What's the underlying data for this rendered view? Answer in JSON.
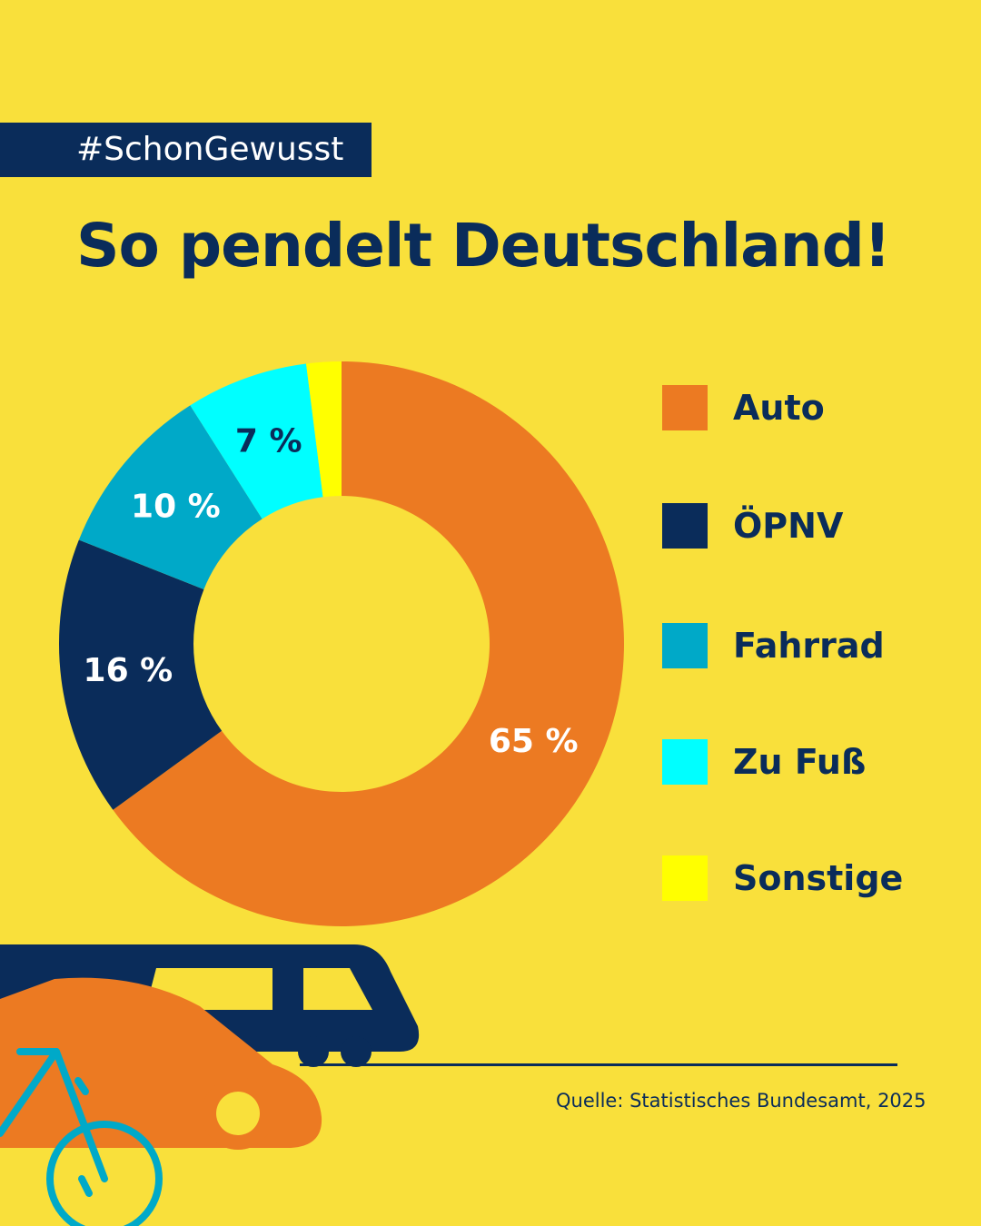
{
  "tag": "#SchonGewusst",
  "title": "So pendelt Deutschland!",
  "chart_data": {
    "type": "pie",
    "donut": true,
    "title": "So pendelt Deutschland!",
    "legend_position": "right",
    "categories": [
      "Auto",
      "ÖPNV",
      "Fahrrad",
      "Zu Fuß",
      "Sonstige"
    ],
    "values": [
      65,
      16,
      10,
      7,
      2
    ],
    "labels": [
      "65 %",
      "16 %",
      "10 %",
      "7 %",
      ""
    ],
    "colors": [
      "#ec7a22",
      "#0a2c5a",
      "#00a9c8",
      "#00ffff",
      "#ffff00"
    ],
    "label_colors": [
      "#ffffff",
      "#ffffff",
      "#ffffff",
      "#0a2c5a",
      "#0a2c5a"
    ]
  },
  "source": "Quelle: Statistisches Bundesamt, 2025",
  "illustration": {
    "icons": [
      "train-icon",
      "car-icon",
      "bicycle-icon"
    ],
    "colors": {
      "train": "#0a2c5a",
      "car": "#ec7a22",
      "bicycle": "#00a9c8"
    }
  }
}
